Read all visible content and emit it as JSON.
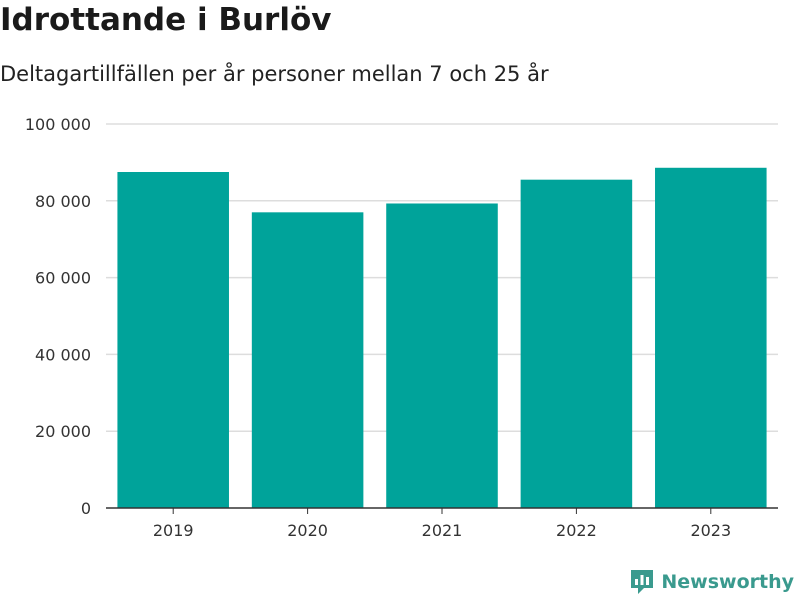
{
  "colors": {
    "bar": "#00a39a",
    "grid": "#dddddd",
    "axis": "#333333",
    "brand": "#3a9a8e"
  },
  "brand": {
    "name": "Newsworthy",
    "icon": "newsworthy-logo-icon"
  },
  "chart_data": {
    "type": "bar",
    "title": "Idrottande i Burlöv",
    "subtitle": "Deltagartillfällen per år personer mellan 7 och 25 år",
    "xlabel": "",
    "ylabel": "",
    "categories": [
      "2019",
      "2020",
      "2021",
      "2022",
      "2023"
    ],
    "values": [
      87500,
      77000,
      79300,
      85500,
      88600
    ],
    "ylim": [
      0,
      100000
    ],
    "yticks": [
      0,
      20000,
      40000,
      60000,
      80000,
      100000
    ],
    "ytick_labels": [
      "0",
      "20 000",
      "40 000",
      "60 000",
      "80 000",
      "100 000"
    ],
    "grid": true,
    "legend": "none"
  }
}
